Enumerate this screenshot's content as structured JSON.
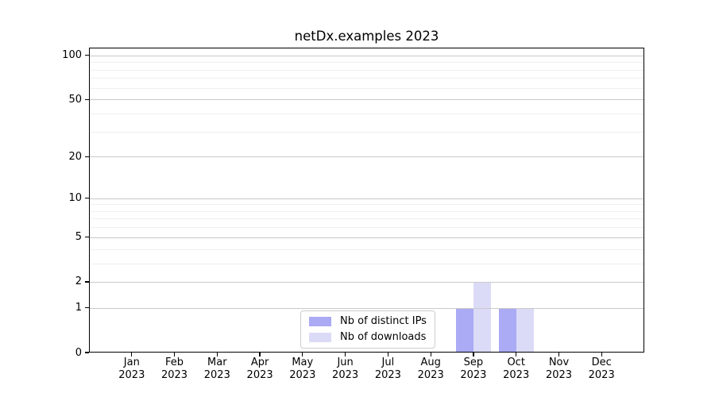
{
  "chart_data": {
    "type": "bar",
    "title": "netDx.examples 2023",
    "categories": [
      "Jan",
      "Feb",
      "Mar",
      "Apr",
      "May",
      "Jun",
      "Jul",
      "Aug",
      "Sep",
      "Oct",
      "Nov",
      "Dec"
    ],
    "year": "2023",
    "series": [
      {
        "name": "Nb of distinct IPs",
        "color": "#aaaaf5",
        "values": [
          0,
          0,
          0,
          0,
          0,
          0,
          0,
          0,
          1,
          1,
          0,
          0
        ]
      },
      {
        "name": "Nb of downloads",
        "color": "#dbdbf7",
        "values": [
          0,
          0,
          0,
          0,
          0,
          0,
          0,
          0,
          2,
          1,
          0,
          0
        ]
      }
    ],
    "xlabel": "",
    "ylabel": "",
    "yscale": "log1p",
    "ylim": [
      0,
      113
    ],
    "y_tick_values": [
      0,
      1,
      2,
      5,
      10,
      20,
      50,
      100
    ],
    "y_tick_labels": [
      "0",
      "1",
      "2",
      "5",
      "10",
      "20",
      "50",
      "100"
    ],
    "y_minor_gridlines": [
      3,
      4,
      6,
      7,
      8,
      9,
      30,
      40,
      60,
      70,
      80,
      90
    ],
    "grid": "horizontal",
    "legend_position": "inside-bottom-center",
    "colors": {
      "major_grid": "#c9c9c9",
      "minor_grid": "#efefef",
      "axis": "#000000",
      "background": "#ffffff",
      "text": "#000000"
    }
  }
}
